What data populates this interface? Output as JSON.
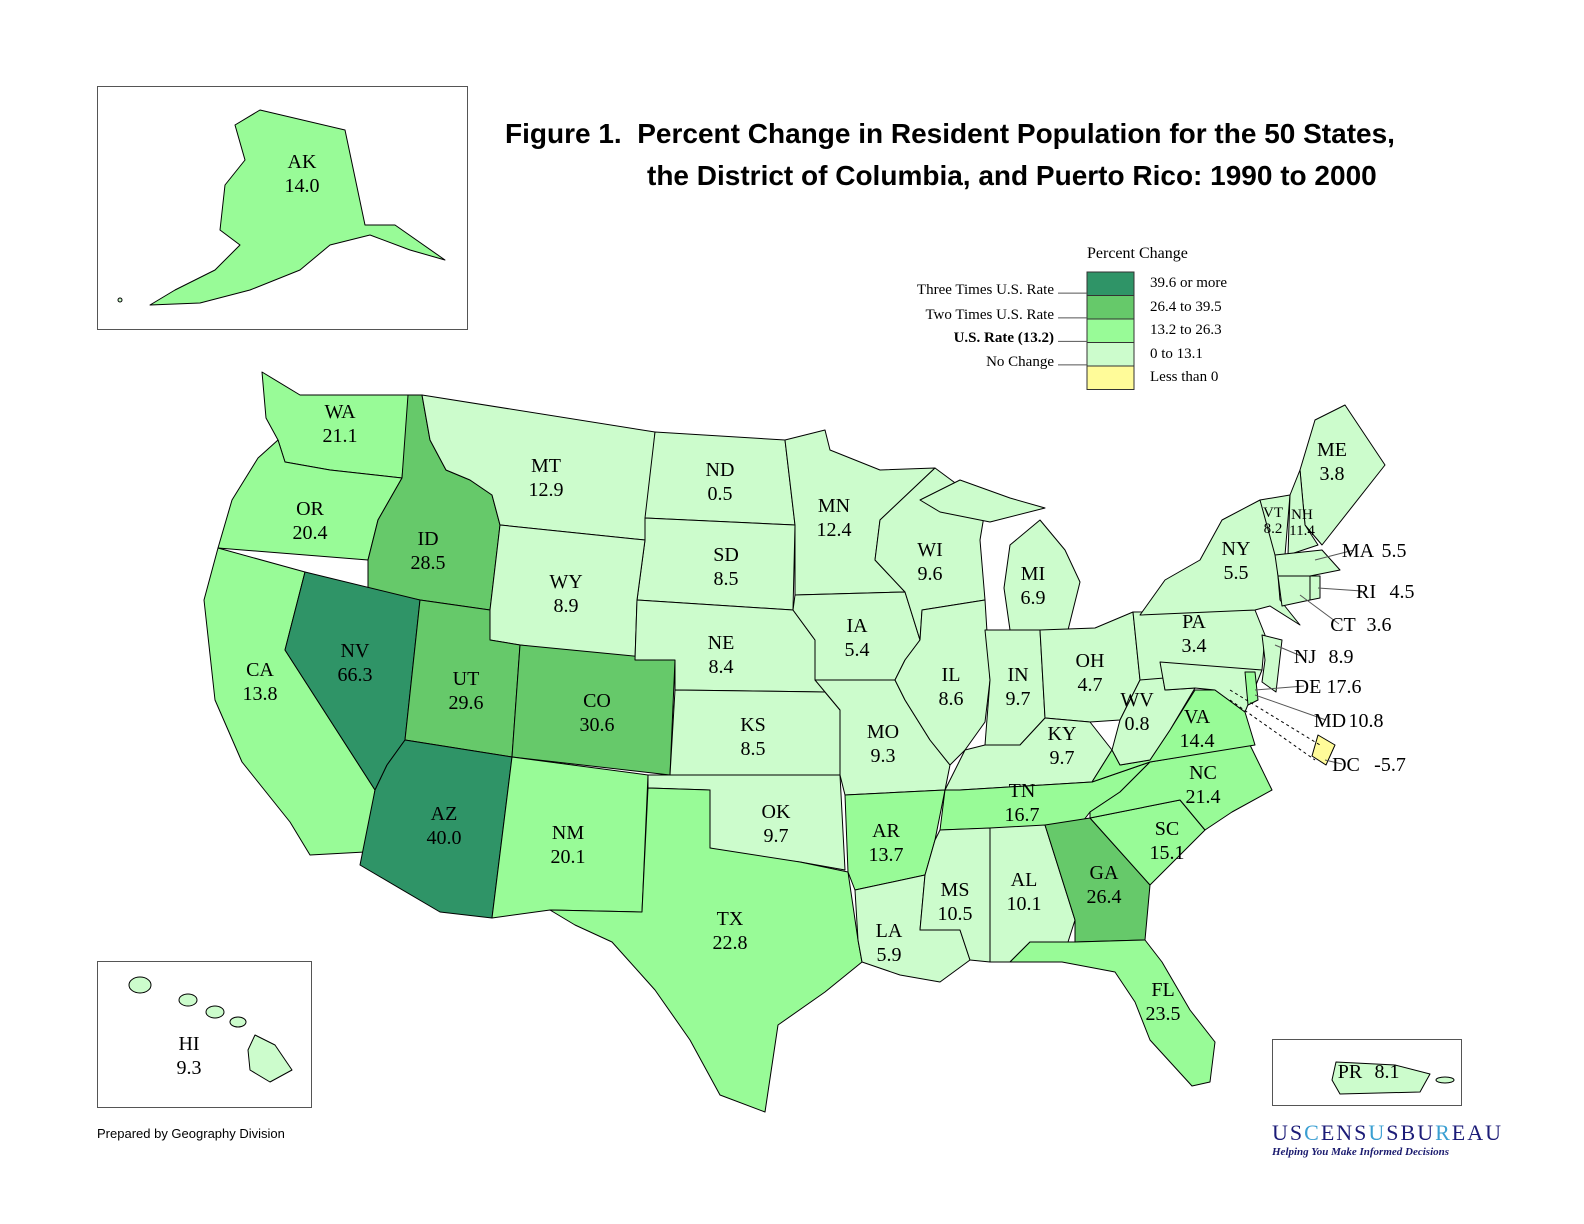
{
  "title": {
    "line1": "Figure 1.  Percent Change in Resident Population for the 50 States,",
    "line2": "the District of Columbia, and Puerto Rico: 1990 to 2000"
  },
  "legend": {
    "title": "Percent Change",
    "classes": [
      {
        "label": "39.6 or more",
        "min": 39.6,
        "color": "#2f9467",
        "marker": "Three Times U.S. Rate"
      },
      {
        "label": "26.4 to 39.5",
        "min": 26.4,
        "color": "#66c96a",
        "marker": "Two Times U.S. Rate"
      },
      {
        "label": "13.2 to 26.3",
        "min": 13.2,
        "color": "#98fb97",
        "marker": "U.S. Rate (13.2)"
      },
      {
        "label": "0 to 13.1",
        "min": 0,
        "color": "#ccfccc",
        "marker": "No Change"
      },
      {
        "label": "Less than 0",
        "min": -1000,
        "color": "#fffb99",
        "marker": ""
      }
    ]
  },
  "states": {
    "AK": 14.0,
    "HI": 9.3,
    "PR": 8.1,
    "WA": 21.1,
    "OR": 20.4,
    "CA": 13.8,
    "ID": 28.5,
    "NV": 66.3,
    "MT": 12.9,
    "WY": 8.9,
    "UT": 29.6,
    "AZ": 40.0,
    "CO": 30.6,
    "NM": 20.1,
    "ND": 0.5,
    "SD": 8.5,
    "NE": 8.4,
    "KS": 8.5,
    "OK": 9.7,
    "TX": 22.8,
    "MN": 12.4,
    "IA": 5.4,
    "MO": 9.3,
    "AR": 13.7,
    "LA": 5.9,
    "WI": 9.6,
    "IL": 8.6,
    "MI": 6.9,
    "IN": 9.7,
    "OH": 4.7,
    "KY": 9.7,
    "TN": 16.7,
    "MS": 10.5,
    "AL": 10.1,
    "GA": 26.4,
    "FL": 23.5,
    "SC": 15.1,
    "NC": 21.4,
    "VA": 14.4,
    "WV": 0.8,
    "PA": 3.4,
    "NY": 5.5,
    "ME": 3.8,
    "VT": 8.2,
    "NH": 11.4,
    "MA": 5.5,
    "RI": 4.5,
    "CT": 3.6,
    "NJ": 8.9,
    "DE": 17.6,
    "MD": 10.8,
    "DC": -5.7
  },
  "footer": {
    "prepared": "Prepared by Geography Division",
    "logo_parts": [
      "US",
      "C",
      "E",
      "NS",
      "U",
      "SBU",
      "R",
      "E",
      "AU"
    ],
    "tagline": "Helping You Make Informed Decisions"
  },
  "colors": {
    "logo_dark": "#1c1c78",
    "logo_light": "#3a9fd2"
  }
}
